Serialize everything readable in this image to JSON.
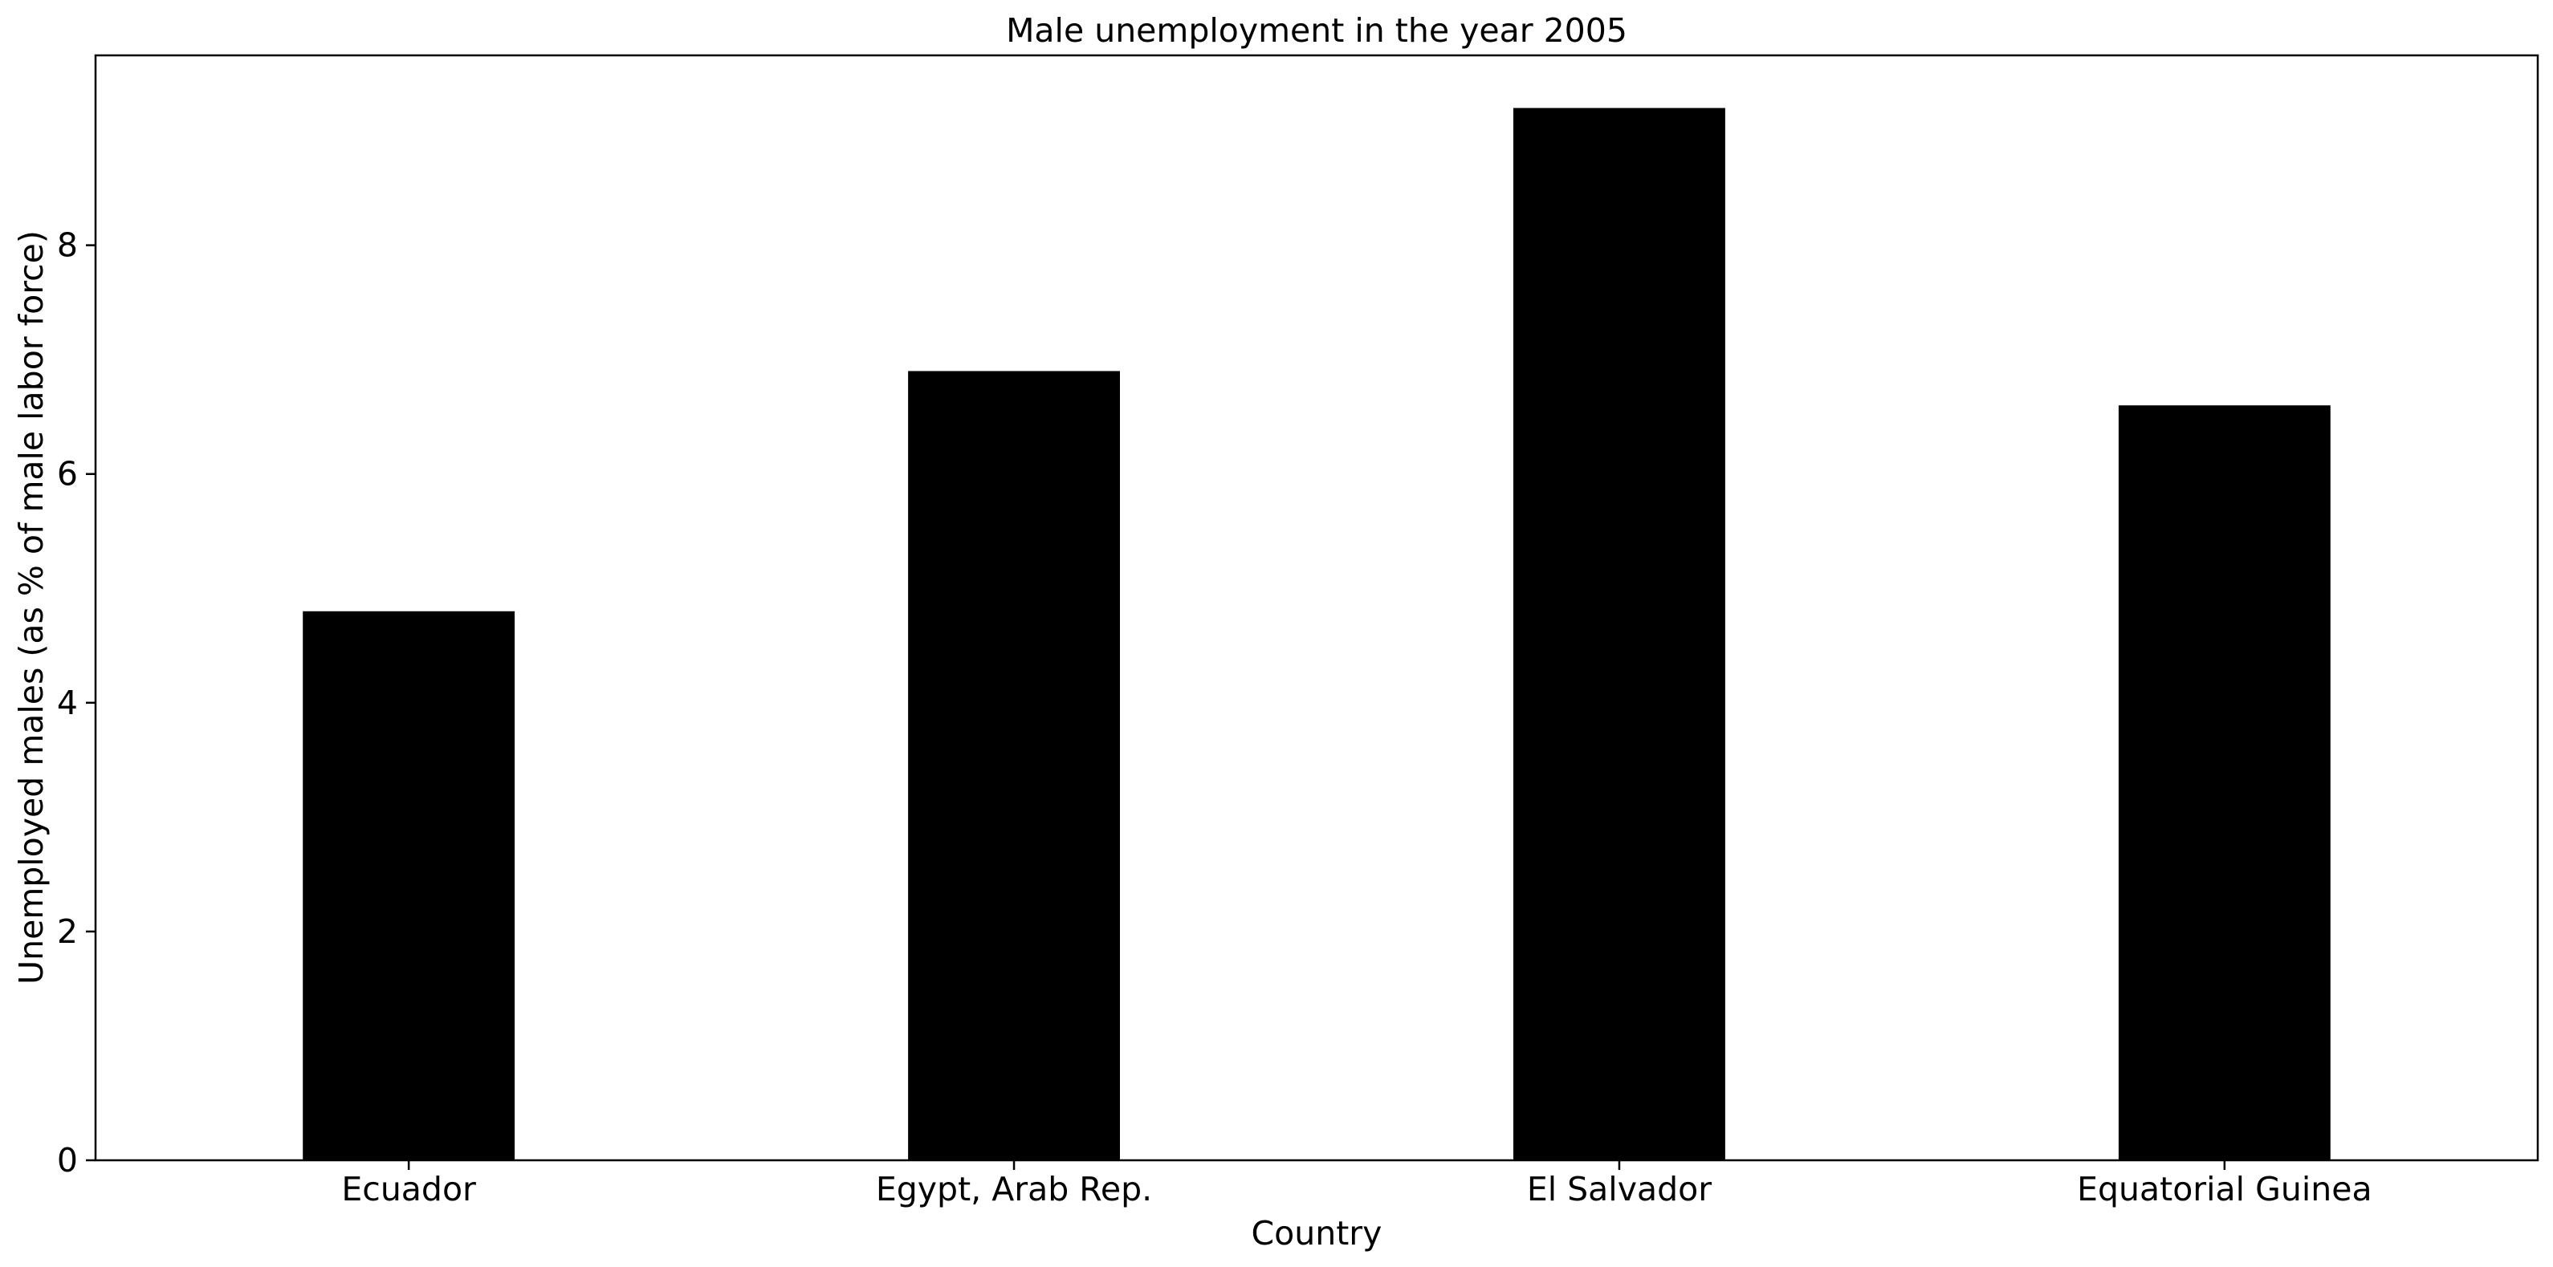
{
  "chart_data": {
    "type": "bar",
    "title": "Male unemployment in the year 2005",
    "xlabel": "Country",
    "ylabel": "Unemployed males (as % of male labor force)",
    "categories": [
      "Ecuador",
      "Egypt, Arab Rep.",
      "El Salvador",
      "Equatorial Guinea"
    ],
    "values": [
      4.8,
      6.9,
      9.2,
      6.6
    ],
    "yticks": [
      0,
      2,
      4,
      6,
      8
    ],
    "ylim": [
      0,
      9.66
    ],
    "grid": false,
    "legend": "none",
    "bar_color": "#000000"
  }
}
